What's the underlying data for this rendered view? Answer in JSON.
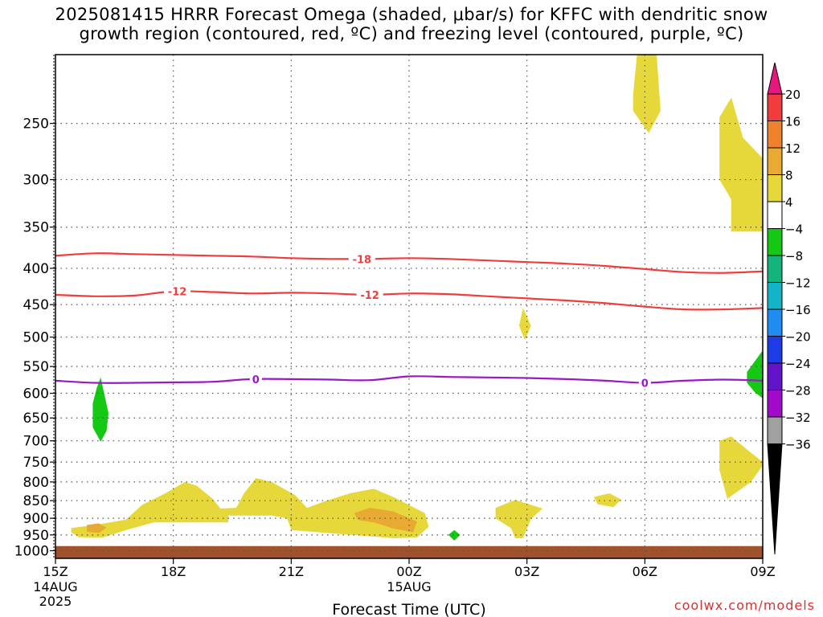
{
  "title": {
    "line1": "2025081415 HRRR Forecast Omega (shaded, μbar/s) for KFFC with dendritic snow",
    "line2": "growth region (contoured, red, ºC) and freezing level (contoured, purple, ºC)"
  },
  "watermark": "coolwx.com/models",
  "chart_data": {
    "type": "heatmap",
    "title": "2025081415 HRRR Forecast Omega (shaded, μbar/s) for KFFC with dendritic snow growth region (contoured, red, ºC) and freezing level (contoured, purple, ºC)",
    "xlabel": "Forecast Time (UTC)",
    "ylabel": "",
    "x_ticks": [
      {
        "hour": 0,
        "label": "15Z",
        "sub": [
          "14AUG",
          "2025"
        ]
      },
      {
        "hour": 3,
        "label": "18Z",
        "sub": []
      },
      {
        "hour": 6,
        "label": "21Z",
        "sub": []
      },
      {
        "hour": 9,
        "label": "00Z",
        "sub": [
          "15AUG"
        ]
      },
      {
        "hour": 12,
        "label": "03Z",
        "sub": []
      },
      {
        "hour": 15,
        "label": "06Z",
        "sub": []
      },
      {
        "hour": 18,
        "label": "09Z",
        "sub": []
      }
    ],
    "y_ticks": [
      250,
      300,
      350,
      400,
      450,
      500,
      550,
      600,
      650,
      700,
      750,
      800,
      850,
      900,
      950,
      1000
    ],
    "y_range": [
      1025,
      200
    ],
    "grid": true,
    "colorbar": {
      "labels": [
        "20",
        "16",
        "12",
        "8",
        "4",
        "−4",
        "−8",
        "−12",
        "−16",
        "−20",
        "−24",
        "−28",
        "−32",
        "−36"
      ],
      "colors": [
        "#e8167f",
        "#f03c3c",
        "#f0822d",
        "#e8aa32",
        "#e6d73a",
        "#ffffff",
        "#14c814",
        "#14b47d",
        "#14b4c8",
        "#1e8cf0",
        "#1e3ce6",
        "#6414c8",
        "#a00ac8",
        "#a0a0a0",
        "#000000"
      ]
    },
    "ground": {
      "color": "#a0522d",
      "from_hpa": 985
    },
    "contours": [
      {
        "color": "#f03c3c",
        "label": "-18",
        "label_at": [
          {
            "hour": 7.8,
            "p": 388
          }
        ],
        "points": [
          [
            0,
            384
          ],
          [
            1,
            381
          ],
          [
            2,
            382
          ],
          [
            3,
            383
          ],
          [
            4,
            384
          ],
          [
            5,
            385
          ],
          [
            6,
            387
          ],
          [
            7,
            388
          ],
          [
            8,
            388
          ],
          [
            9,
            387
          ],
          [
            10,
            388
          ],
          [
            11,
            390
          ],
          [
            12,
            392
          ],
          [
            13,
            394
          ],
          [
            14,
            397
          ],
          [
            15,
            401
          ],
          [
            16,
            405
          ],
          [
            17,
            406
          ],
          [
            18,
            404
          ]
        ]
      },
      {
        "color": "#f03c3c",
        "label": "-12",
        "label_at": [
          {
            "hour": 3.1,
            "p": 431
          },
          {
            "hour": 8.0,
            "p": 436
          }
        ],
        "points": [
          [
            0,
            436
          ],
          [
            1,
            438
          ],
          [
            2,
            437
          ],
          [
            3,
            431
          ],
          [
            4,
            432
          ],
          [
            5,
            434
          ],
          [
            6,
            433
          ],
          [
            7,
            434
          ],
          [
            8,
            436
          ],
          [
            9,
            434
          ],
          [
            10,
            435
          ],
          [
            11,
            438
          ],
          [
            12,
            441
          ],
          [
            13,
            444
          ],
          [
            14,
            448
          ],
          [
            15,
            453
          ],
          [
            16,
            457
          ],
          [
            17,
            457
          ],
          [
            18,
            455
          ]
        ]
      },
      {
        "color": "#9b18c8",
        "label": "0",
        "label_at": [
          {
            "hour": 5.1,
            "p": 573
          },
          {
            "hour": 15.0,
            "p": 580
          }
        ],
        "points": [
          [
            0,
            576
          ],
          [
            1,
            580
          ],
          [
            2,
            580
          ],
          [
            3,
            579
          ],
          [
            4,
            578
          ],
          [
            5,
            573
          ],
          [
            6,
            573
          ],
          [
            7,
            574
          ],
          [
            8,
            575
          ],
          [
            9,
            568
          ],
          [
            10,
            569
          ],
          [
            11,
            570
          ],
          [
            12,
            571
          ],
          [
            13,
            573
          ],
          [
            14,
            576
          ],
          [
            15,
            580
          ],
          [
            16,
            576
          ],
          [
            17,
            574
          ],
          [
            18,
            576
          ]
        ]
      }
    ],
    "shaded_regions": [
      {
        "omega": "4 to 8",
        "color": "#e6d73a",
        "points": [
          [
            0.4,
            929
          ],
          [
            1.0,
            920
          ],
          [
            1.8,
            904
          ],
          [
            2.2,
            862
          ],
          [
            2.8,
            830
          ],
          [
            3.3,
            800
          ],
          [
            3.6,
            810
          ],
          [
            4.0,
            845
          ],
          [
            4.2,
            872
          ],
          [
            4.6,
            870
          ],
          [
            4.8,
            830
          ],
          [
            5.1,
            790
          ],
          [
            5.5,
            800
          ],
          [
            6.1,
            835
          ],
          [
            6.4,
            870
          ],
          [
            6.9,
            850
          ],
          [
            7.5,
            830
          ],
          [
            8.1,
            818
          ],
          [
            8.6,
            840
          ],
          [
            9.4,
            885
          ],
          [
            9.5,
            925
          ],
          [
            9.2,
            958
          ],
          [
            8.6,
            960
          ],
          [
            7.8,
            952
          ],
          [
            7.0,
            945
          ],
          [
            6.0,
            935
          ],
          [
            5.9,
            900
          ],
          [
            5.5,
            892
          ],
          [
            4.4,
            892
          ],
          [
            4.4,
            912
          ],
          [
            2.5,
            912
          ],
          [
            1.8,
            935
          ],
          [
            1.2,
            958
          ],
          [
            0.6,
            957
          ],
          [
            0.4,
            942
          ]
        ]
      },
      {
        "omega": "8 to 12",
        "color": "#e8aa32",
        "points": [
          [
            7.6,
            885
          ],
          [
            8.0,
            870
          ],
          [
            8.6,
            880
          ],
          [
            9.2,
            910
          ],
          [
            9.1,
            942
          ],
          [
            8.6,
            930
          ],
          [
            8.1,
            912
          ],
          [
            7.7,
            905
          ]
        ]
      },
      {
        "omega": "8 to 12",
        "color": "#e8aa32",
        "points": [
          [
            0.8,
            920
          ],
          [
            1.1,
            915
          ],
          [
            1.3,
            928
          ],
          [
            1.1,
            944
          ],
          [
            0.8,
            940
          ]
        ]
      },
      {
        "omega": "4 to 8",
        "color": "#e6d73a",
        "points": [
          [
            11.2,
            870
          ],
          [
            11.7,
            848
          ],
          [
            12.4,
            872
          ],
          [
            12.1,
            902
          ],
          [
            11.9,
            960
          ],
          [
            11.7,
            960
          ],
          [
            11.6,
            930
          ],
          [
            11.2,
            900
          ]
        ]
      },
      {
        "omega": "4 to 8",
        "color": "#e6d73a",
        "points": [
          [
            13.7,
            840
          ],
          [
            14.1,
            830
          ],
          [
            14.4,
            847
          ],
          [
            14.2,
            868
          ],
          [
            13.8,
            860
          ]
        ]
      },
      {
        "omega": "4 to 8",
        "color": "#e6d73a",
        "points": [
          [
            11.8,
            482
          ],
          [
            11.9,
            455
          ],
          [
            12.1,
            482
          ],
          [
            11.95,
            505
          ]
        ]
      },
      {
        "omega": "4 to 8",
        "color": "#e6d73a",
        "points": [
          [
            14.7,
            228
          ],
          [
            14.8,
            200
          ],
          [
            15.3,
            200
          ],
          [
            15.4,
            240
          ],
          [
            15.1,
            258
          ],
          [
            14.7,
            240
          ]
        ]
      },
      {
        "omega": "4 to 8",
        "color": "#e6d73a",
        "points": [
          [
            16.9,
            245
          ],
          [
            17.2,
            230
          ],
          [
            17.5,
            262
          ],
          [
            18,
            280
          ],
          [
            18,
            355
          ],
          [
            17.2,
            355
          ],
          [
            17.2,
            320
          ],
          [
            16.9,
            300
          ]
        ]
      },
      {
        "omega": "4 to 8",
        "color": "#e6d73a",
        "points": [
          [
            16.9,
            700
          ],
          [
            17.2,
            690
          ],
          [
            17.6,
            720
          ],
          [
            18,
            750
          ],
          [
            18,
            758
          ],
          [
            17.7,
            800
          ],
          [
            17.4,
            822
          ],
          [
            17.1,
            845
          ],
          [
            16.9,
            770
          ]
        ]
      },
      {
        "omega": "-8 to -4",
        "color": "#14c814",
        "points": [
          [
            1.05,
            590
          ],
          [
            1.15,
            570
          ],
          [
            1.35,
            640
          ],
          [
            1.3,
            678
          ],
          [
            1.15,
            702
          ],
          [
            0.95,
            670
          ],
          [
            0.95,
            620
          ]
        ]
      },
      {
        "omega": "-8 to -4",
        "color": "#14c814",
        "points": [
          [
            10.0,
            950
          ],
          [
            10.15,
            935
          ],
          [
            10.3,
            950
          ],
          [
            10.15,
            968
          ]
        ]
      },
      {
        "omega": "-8 to -4",
        "color": "#14c814",
        "points": [
          [
            17.6,
            560
          ],
          [
            18,
            522
          ],
          [
            18,
            610
          ],
          [
            17.8,
            598
          ],
          [
            17.6,
            580
          ]
        ]
      }
    ]
  }
}
